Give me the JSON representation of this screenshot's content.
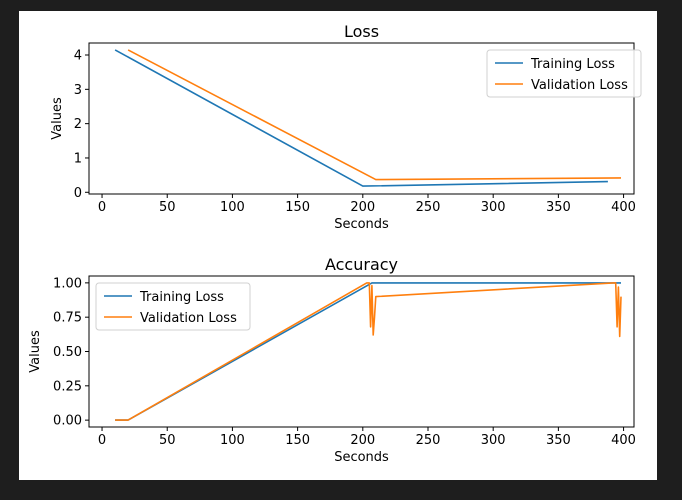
{
  "colors": {
    "training": "#1f77b4",
    "validation": "#ff7f0e",
    "background": "#1e1e1e",
    "figure": "#ffffff"
  },
  "chart_data": [
    {
      "type": "line",
      "title": "Loss",
      "xlabel": "Seconds",
      "ylabel": "Values",
      "xlim": [
        -10,
        408
      ],
      "ylim": [
        -0.05,
        4.35
      ],
      "xticks": [
        0,
        50,
        100,
        150,
        200,
        250,
        300,
        350,
        400
      ],
      "yticks": [
        0,
        1,
        2,
        3,
        4
      ],
      "grid": false,
      "legend_position": "top-right",
      "series": [
        {
          "name": "Training Loss",
          "color": "#1f77b4",
          "x": [
            10,
            200,
            388
          ],
          "y": [
            4.15,
            0.18,
            0.31
          ]
        },
        {
          "name": "Validation Loss",
          "color": "#ff7f0e",
          "x": [
            20,
            210,
            398
          ],
          "y": [
            4.15,
            0.37,
            0.42
          ]
        }
      ]
    },
    {
      "type": "line",
      "title": "Accuracy",
      "xlabel": "Seconds",
      "ylabel": "Values",
      "xlim": [
        -10,
        408
      ],
      "ylim": [
        -0.05,
        1.05
      ],
      "xticks": [
        0,
        50,
        100,
        150,
        200,
        250,
        300,
        350,
        400
      ],
      "yticks": [
        0.0,
        0.25,
        0.5,
        0.75,
        1.0
      ],
      "ytick_labels": [
        "0.00",
        "0.25",
        "0.50",
        "0.75",
        "1.00"
      ],
      "grid": false,
      "legend_position": "top-left",
      "series": [
        {
          "name": "Training Loss",
          "color": "#1f77b4",
          "x": [
            10,
            20,
            207,
            398
          ],
          "y": [
            0.0,
            0.0,
            1.0,
            1.0
          ]
        },
        {
          "name": "Validation Loss",
          "color": "#ff7f0e",
          "x": [
            10,
            20,
            203,
            205,
            206,
            207,
            208,
            209,
            210,
            392,
            393,
            394,
            395,
            396,
            397,
            398
          ],
          "y": [
            0.0,
            0.0,
            1.0,
            1.0,
            0.68,
            0.98,
            0.62,
            0.75,
            0.9,
            1.0,
            1.0,
            1.0,
            0.68,
            0.97,
            0.61,
            0.9
          ]
        }
      ]
    }
  ]
}
